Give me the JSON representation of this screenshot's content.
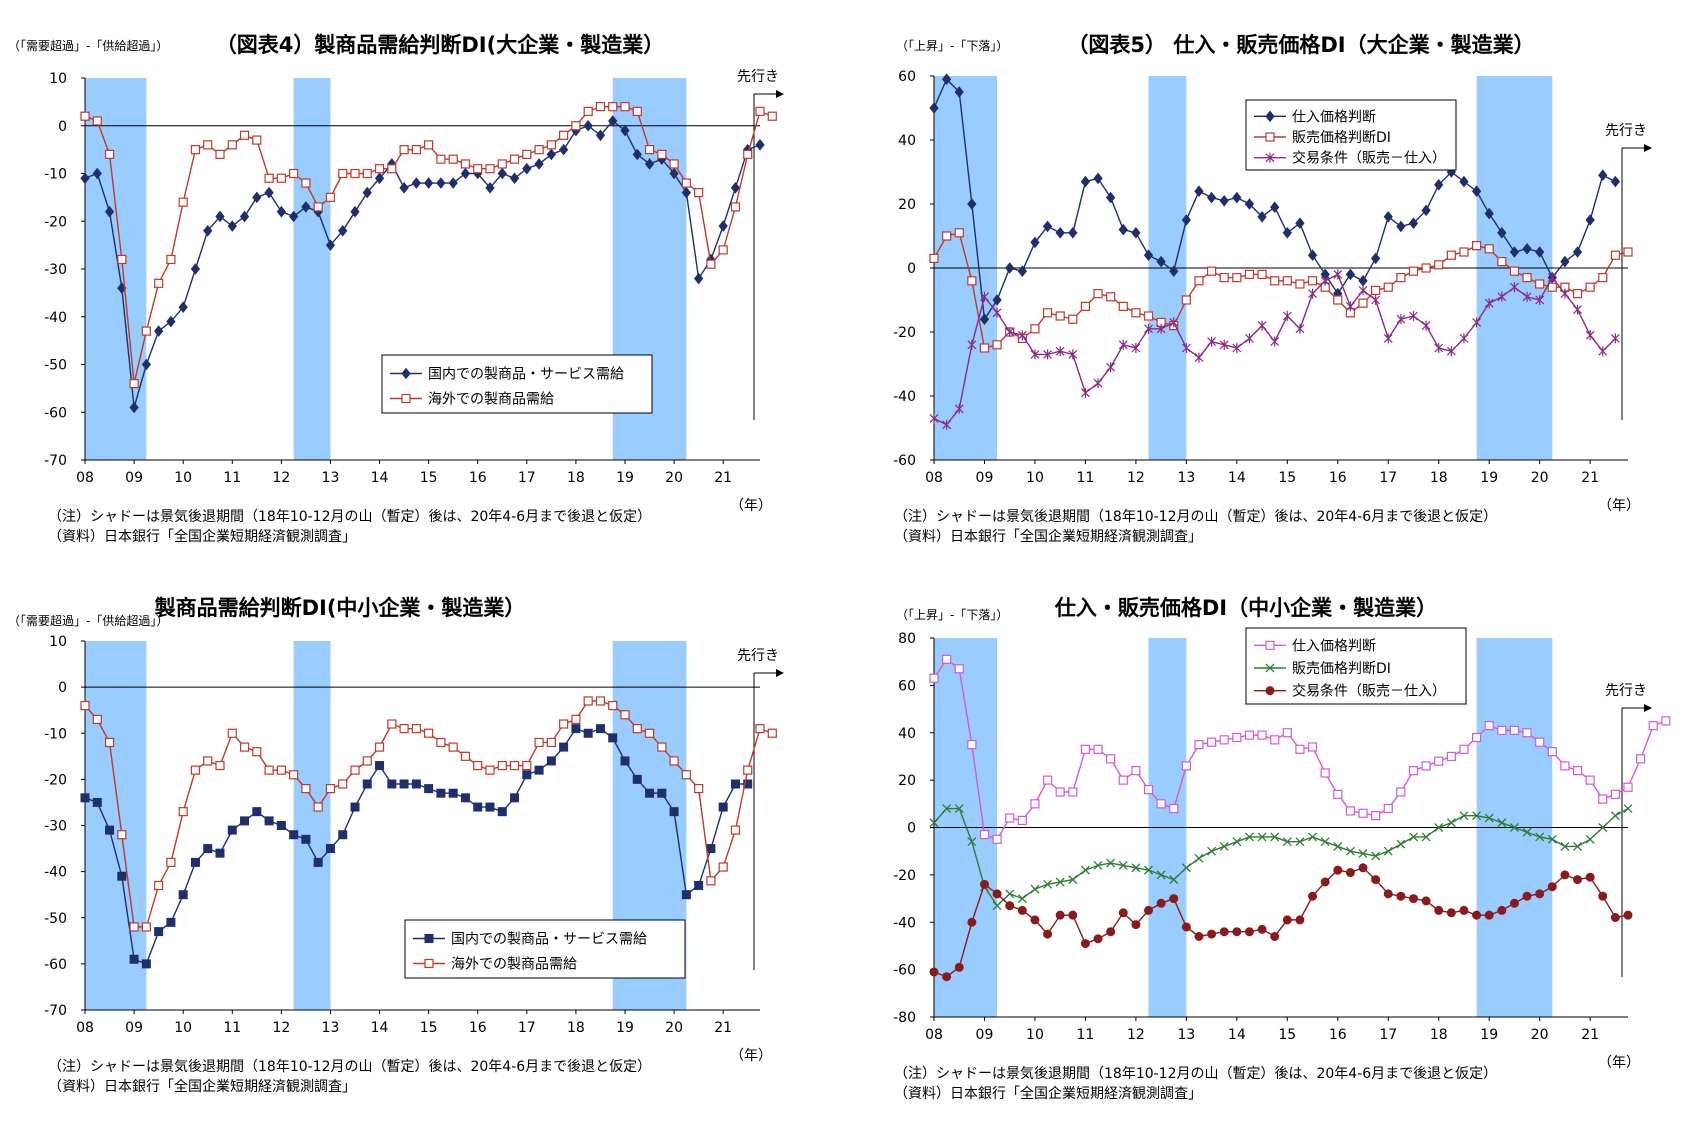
{
  "chart_data": [
    {
      "type": "line",
      "title": "（図表4）製商品需給判断DI(大企業・製造業）",
      "ylabel": "（「需要超過」-「供給超過」）",
      "xlabel": "（年）",
      "x_start": 2008.0,
      "x_step": 0.25,
      "ylim": [
        -70,
        10
      ],
      "yticks": [
        10,
        0,
        -10,
        -20,
        -30,
        -40,
        -50,
        -60,
        -70
      ],
      "xticks": [
        "08",
        "09",
        "10",
        "11",
        "12",
        "13",
        "14",
        "15",
        "16",
        "17",
        "18",
        "19",
        "20",
        "21"
      ],
      "shading": [
        [
          2008.0,
          2009.25
        ],
        [
          2012.25,
          2013.0
        ],
        [
          2018.75,
          2020.25
        ]
      ],
      "forecast_label": "先行き",
      "legend_position": "lower-center",
      "notes": [
        "（注）シャドーは景気後退期間（18年10-12月の山（暫定）後は、20年4-6月まで後退と仮定）",
        "（資料）日本銀行「全国企業短期経済観測調査」"
      ],
      "series": [
        {
          "name": "国内での製商品・サービス需給",
          "color": "#1f2f6e",
          "marker": "diamond-filled",
          "values": [
            -11,
            -10,
            -18,
            -34,
            -59,
            -50,
            -43,
            -41,
            -38,
            -30,
            -22,
            -19,
            -21,
            -19,
            -15,
            -14,
            -18,
            -19,
            -17,
            -18,
            -25,
            -22,
            -18,
            -14,
            -11,
            -8,
            -13,
            -12,
            -12,
            -12,
            -12,
            -10,
            -10,
            -13,
            -10,
            -11,
            -9,
            -8,
            -6,
            -5,
            -1,
            0,
            -2,
            1,
            -1,
            -6,
            -8,
            -7,
            -10,
            -14,
            -32,
            -28,
            -21,
            -13,
            -5,
            -4
          ]
        },
        {
          "name": "海外での製商品需給",
          "color": "#c0392b",
          "marker": "square-open",
          "values": [
            2,
            1,
            -6,
            -28,
            -54,
            -43,
            -33,
            -28,
            -16,
            -5,
            -4,
            -6,
            -4,
            -2,
            -3,
            -11,
            -11,
            -10,
            -12,
            -17,
            -15,
            -10,
            -10,
            -10,
            -9,
            -9,
            -5,
            -5,
            -4,
            -7,
            -7,
            -8,
            -9,
            -9,
            -8,
            -7,
            -6,
            -5,
            -4,
            -2,
            0,
            3,
            4,
            4,
            4,
            3,
            -5,
            -6,
            -8,
            -12,
            -14,
            -29,
            -26,
            -17,
            -6,
            3,
            2
          ]
        }
      ]
    },
    {
      "type": "line",
      "title": "（図表5） 仕入・販売価格DI（大企業・製造業）",
      "ylabel": "（「上昇」-「下落」）",
      "xlabel": "（年）",
      "x_start": 2008.0,
      "x_step": 0.25,
      "ylim": [
        -60,
        60
      ],
      "yticks": [
        60,
        40,
        20,
        0,
        -20,
        -40,
        -60
      ],
      "xticks": [
        "08",
        "09",
        "10",
        "11",
        "12",
        "13",
        "14",
        "15",
        "16",
        "17",
        "18",
        "19",
        "20",
        "21"
      ],
      "shading": [
        [
          2008.0,
          2009.25
        ],
        [
          2012.25,
          2013.0
        ],
        [
          2018.75,
          2020.25
        ]
      ],
      "forecast_label": "先行き",
      "legend_position": "top-center",
      "notes": [
        "（注）シャドーは景気後退期間（18年10-12月の山（暫定）後は、20年4-6月まで後退と仮定）",
        "（資料）日本銀行「全国企業短期経済観測調査」"
      ],
      "series": [
        {
          "name": "仕入価格判断",
          "color": "#1f2f6e",
          "marker": "diamond-filled",
          "values": [
            50,
            59,
            55,
            20,
            -16,
            -10,
            0,
            -1,
            8,
            13,
            11,
            11,
            27,
            28,
            22,
            12,
            11,
            4,
            2,
            -1,
            15,
            24,
            22,
            21,
            22,
            20,
            16,
            19,
            11,
            14,
            4,
            -2,
            -8,
            -2,
            -4,
            3,
            16,
            13,
            14,
            18,
            26,
            30,
            27,
            24,
            17,
            11,
            5,
            6,
            5,
            -3,
            2,
            5,
            15,
            29,
            27
          ]
        },
        {
          "name": "販売価格判断DI",
          "color": "#c0392b",
          "marker": "square-open",
          "values": [
            3,
            10,
            11,
            -4,
            -25,
            -24,
            -20,
            -22,
            -19,
            -14,
            -15,
            -16,
            -12,
            -8,
            -9,
            -12,
            -14,
            -15,
            -17,
            -18,
            -10,
            -4,
            -1,
            -3,
            -3,
            -2,
            -2,
            -4,
            -4,
            -5,
            -4,
            -6,
            -10,
            -14,
            -11,
            -7,
            -6,
            -3,
            -1,
            0,
            1,
            4,
            5,
            7,
            6,
            2,
            -1,
            -3,
            -5,
            -6,
            -6,
            -8,
            -6,
            -3,
            4,
            5
          ]
        },
        {
          "name": "交易条件（販売－仕入）",
          "color": "#8b2a8b",
          "marker": "star",
          "values": [
            -47,
            -49,
            -44,
            -24,
            -9,
            -14,
            -20,
            -21,
            -27,
            -27,
            -26,
            -27,
            -39,
            -36,
            -31,
            -24,
            -25,
            -19,
            -19,
            -17,
            -25,
            -28,
            -23,
            -24,
            -25,
            -22,
            -18,
            -23,
            -15,
            -19,
            -8,
            -4,
            -2,
            -12,
            -7,
            -10,
            -22,
            -16,
            -15,
            -18,
            -25,
            -26,
            -22,
            -17,
            -11,
            -9,
            -6,
            -9,
            -10,
            -3,
            -8,
            -13,
            -21,
            -26,
            -22
          ]
        }
      ]
    },
    {
      "type": "line",
      "title": "製商品需給判断DI(中小企業・製造業）",
      "ylabel": "（「需要超過」-「供給超過」）",
      "xlabel": "（年）",
      "x_start": 2008.0,
      "x_step": 0.25,
      "ylim": [
        -70,
        10
      ],
      "yticks": [
        10,
        0,
        -10,
        -20,
        -30,
        -40,
        -50,
        -60,
        -70
      ],
      "xticks": [
        "08",
        "09",
        "10",
        "11",
        "12",
        "13",
        "14",
        "15",
        "16",
        "17",
        "18",
        "19",
        "20",
        "21"
      ],
      "shading": [
        [
          2008.0,
          2009.25
        ],
        [
          2012.25,
          2013.0
        ],
        [
          2018.75,
          2020.25
        ]
      ],
      "forecast_label": "先行き",
      "legend_position": "bottom-right",
      "notes": [
        "（注）シャドーは景気後退期間（18年10-12月の山（暫定）後は、20年4-6月まで後退と仮定）",
        "（資料）日本銀行「全国企業短期経済観測調査」"
      ],
      "series": [
        {
          "name": "国内での製商品・サービス需給",
          "color": "#1f2f6e",
          "marker": "square-filled",
          "values": [
            -24,
            -25,
            -31,
            -41,
            -59,
            -60,
            -53,
            -51,
            -45,
            -38,
            -35,
            -36,
            -31,
            -29,
            -27,
            -29,
            -30,
            -32,
            -33,
            -38,
            -35,
            -32,
            -26,
            -21,
            -17,
            -21,
            -21,
            -21,
            -22,
            -23,
            -23,
            -24,
            -26,
            -26,
            -27,
            -24,
            -19,
            -18,
            -16,
            -13,
            -9,
            -10,
            -9,
            -11,
            -16,
            -20,
            -23,
            -23,
            -27,
            -45,
            -43,
            -35,
            -26,
            -21,
            -21
          ]
        },
        {
          "name": "海外での製商品需給",
          "color": "#c0392b",
          "marker": "square-open",
          "values": [
            -4,
            -7,
            -12,
            -32,
            -52,
            -52,
            -43,
            -38,
            -27,
            -18,
            -16,
            -17,
            -10,
            -13,
            -14,
            -18,
            -18,
            -19,
            -22,
            -26,
            -22,
            -21,
            -18,
            -16,
            -13,
            -8,
            -9,
            -9,
            -10,
            -12,
            -13,
            -15,
            -17,
            -18,
            -17,
            -17,
            -17,
            -12,
            -12,
            -8,
            -7,
            -3,
            -3,
            -4,
            -6,
            -9,
            -10,
            -13,
            -16,
            -19,
            -22,
            -42,
            -39,
            -31,
            -18,
            -9,
            -10
          ]
        }
      ]
    },
    {
      "type": "line",
      "title": "仕入・販売価格DI（中小企業・製造業）",
      "ylabel": "（「上昇」-「下落」）",
      "xlabel": "（年）",
      "x_start": 2008.0,
      "x_step": 0.25,
      "ylim": [
        -80,
        80
      ],
      "yticks": [
        80,
        60,
        40,
        20,
        0,
        -20,
        -40,
        -60,
        -80
      ],
      "xticks": [
        "08",
        "09",
        "10",
        "11",
        "12",
        "13",
        "14",
        "15",
        "16",
        "17",
        "18",
        "19",
        "20",
        "21"
      ],
      "shading": [
        [
          2008.0,
          2009.25
        ],
        [
          2012.25,
          2013.0
        ],
        [
          2018.75,
          2020.25
        ]
      ],
      "forecast_label": "先行き",
      "legend_position": "top-center",
      "notes": [
        "（注）シャドーは景気後退期間（18年10-12月の山（暫定）後は、20年4-6月まで後退と仮定）",
        "（資料）日本銀行「全国企業短期経済観測調査」"
      ],
      "series": [
        {
          "name": "仕入価格判断",
          "color": "#d45ad4",
          "marker": "square-open",
          "values": [
            63,
            71,
            67,
            35,
            -3,
            -5,
            4,
            3,
            10,
            20,
            15,
            15,
            33,
            33,
            29,
            20,
            24,
            16,
            10,
            8,
            26,
            35,
            36,
            37,
            38,
            39,
            39,
            37,
            40,
            33,
            34,
            23,
            14,
            7,
            6,
            5,
            8,
            15,
            24,
            26,
            28,
            30,
            33,
            38,
            43,
            41,
            41,
            40,
            36,
            32,
            26,
            24,
            20,
            12,
            14,
            17,
            29,
            43,
            45
          ]
        },
        {
          "name": "販売価格判断DI",
          "color": "#2e7d32",
          "marker": "x",
          "values": [
            2,
            8,
            8,
            -6,
            -25,
            -33,
            -28,
            -30,
            -26,
            -24,
            -23,
            -22,
            -18,
            -16,
            -15,
            -16,
            -17,
            -18,
            -20,
            -22,
            -17,
            -13,
            -10,
            -8,
            -6,
            -4,
            -4,
            -4,
            -6,
            -6,
            -4,
            -6,
            -8,
            -10,
            -11,
            -12,
            -10,
            -7,
            -4,
            -4,
            0,
            2,
            5,
            5,
            4,
            2,
            0,
            -2,
            -4,
            -5,
            -8,
            -8,
            -5,
            0,
            5,
            8
          ]
        },
        {
          "name": "交易条件（販売－仕入）",
          "color": "#8b1a1a",
          "marker": "circle-filled",
          "values": [
            -61,
            -63,
            -59,
            -40,
            -24,
            -28,
            -33,
            -35,
            -39,
            -45,
            -37,
            -37,
            -49,
            -47,
            -44,
            -36,
            -41,
            -35,
            -32,
            -30,
            -42,
            -46,
            -45,
            -44,
            -44,
            -44,
            -43,
            -46,
            -39,
            -39,
            -29,
            -23,
            -18,
            -19,
            -17,
            -22,
            -28,
            -29,
            -30,
            -31,
            -35,
            -36,
            -35,
            -37,
            -37,
            -35,
            -32,
            -29,
            -28,
            -25,
            -20,
            -22,
            -21,
            -29,
            -38,
            -37
          ]
        }
      ]
    }
  ]
}
